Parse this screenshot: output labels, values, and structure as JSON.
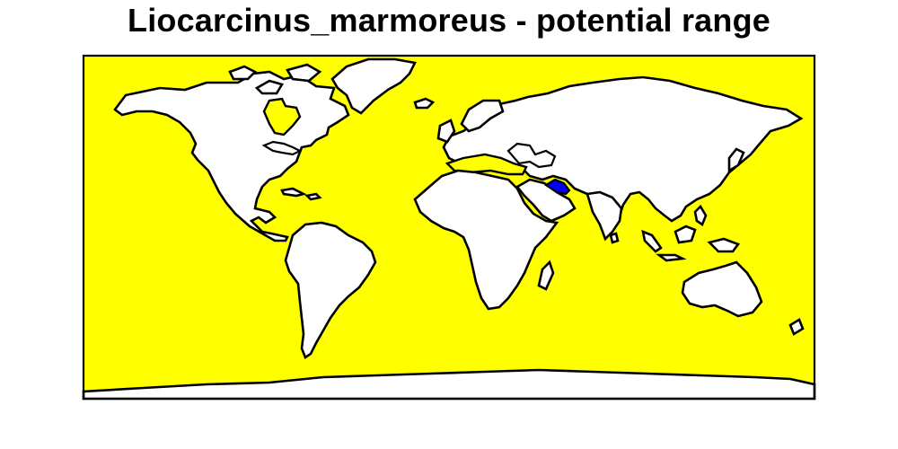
{
  "title": "Liocarcinus_marmoreus - potential range",
  "colors": {
    "ocean": "#ffff00",
    "land": "#ffffff",
    "border": "#000000",
    "presence": "#0000ff"
  }
}
